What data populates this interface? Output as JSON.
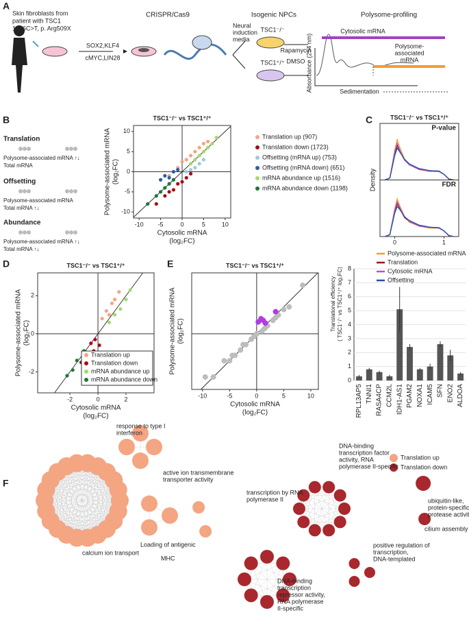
{
  "panel_labels": [
    "A",
    "B",
    "C",
    "D",
    "E",
    "F"
  ],
  "panel_a": {
    "patient": [
      "Skin fibroblasts from",
      "patient with TSC1",
      "1746C>T, p. Arg509X"
    ],
    "factors": [
      "SOX2,KLF4",
      "cMYC,LIN28"
    ],
    "crispr": "CRISPR/Cas9",
    "npcs": "Isogenic NPCs",
    "induction": [
      "Neural",
      "induction",
      "media"
    ],
    "ko": "TSC1⁻/⁻",
    "wt": "TSC1⁺/⁺",
    "treatment": [
      "Rapamycin",
      "DMSO"
    ],
    "profiling": "Polysome-profiling",
    "cytosolic": "Cytosolic mRNA",
    "polysome": [
      "Polysome-",
      "associated",
      "mRNA"
    ],
    "absorbance": "Absorbance (254 nm)",
    "sedimentation": "Sedimentation"
  },
  "panel_b_schema": [
    {
      "title": "Translation",
      "rows": [
        "Polysome-associated mRNA ↑↓",
        "Total mRNA"
      ]
    },
    {
      "title": "Offsetting",
      "rows": [
        "Polysome-associated mRNA",
        "Total mRNA ↑↓"
      ]
    },
    {
      "title": "Abundance",
      "rows": [
        "Polysome-associated mRNA ↑↓",
        "Total mRNA ↑↓"
      ]
    }
  ],
  "chart_data": [
    {
      "type": "scatter",
      "title": "TSC1⁻/⁻ vs TSC1⁺/⁺",
      "xlabel": [
        "Cytosolic mRNA",
        "(log₂FC)"
      ],
      "ylabel": [
        "Polysome-associated mRNA",
        "(log₂FC)"
      ],
      "xlim": [
        -11.3,
        11.3
      ],
      "ylim": [
        -11.5,
        11.5
      ],
      "xticks": [
        -10,
        -5,
        0,
        5,
        10
      ],
      "yticks": [
        -10,
        -5,
        0,
        5,
        10
      ],
      "series": [
        {
          "name": "Translation up (907)",
          "color": "#f4a582",
          "x": [
            -3,
            -1,
            0,
            1,
            2,
            3,
            4,
            5,
            6
          ],
          "y": [
            -1,
            1,
            2.5,
            3,
            4,
            5,
            6,
            7,
            7.5
          ]
        },
        {
          "name": "Translation down (1723)",
          "color": "#a50f15",
          "x": [
            -6,
            -4,
            -3,
            -2,
            -1,
            0,
            1,
            2
          ],
          "y": [
            -8,
            -6,
            -5,
            -4.5,
            -3,
            -2.5,
            -1.5,
            -0.5
          ]
        },
        {
          "name": "Offsetting (mRNA up) (753)",
          "color": "#9ecae1",
          "x": [
            1,
            2,
            3,
            4,
            5
          ],
          "y": [
            0,
            0.5,
            1,
            2,
            3
          ]
        },
        {
          "name": "Offsetting (mRNA down) (651)",
          "color": "#2c5ea8",
          "x": [
            -5,
            -4,
            -3,
            -2,
            -1
          ],
          "y": [
            -2,
            -1,
            -1.5,
            0,
            0.5
          ]
        },
        {
          "name": "mRNA abundance up (1516)",
          "color": "#a6d96a",
          "x": [
            2,
            3,
            4,
            5,
            6,
            7,
            8
          ],
          "y": [
            2,
            3,
            4,
            5,
            6,
            7,
            8.5
          ]
        },
        {
          "name": "mRNA abundance down (1198)",
          "color": "#1b7837",
          "x": [
            -8,
            -6,
            -5,
            -4,
            -3,
            -2
          ],
          "y": [
            -8,
            -6,
            -5,
            -4,
            -3,
            -2
          ]
        }
      ]
    },
    {
      "type": "density",
      "title": "TSC1⁻/⁻ vs TSC1⁺/⁺",
      "ylabel": "Density",
      "x": [
        -0.2,
        -0.1,
        0,
        0.05,
        0.1,
        0.2,
        0.3,
        0.5,
        0.7,
        0.9,
        1,
        1.1,
        1.2
      ],
      "xlim": [
        -0.3,
        1.3
      ],
      "xticks": [
        0,
        1
      ],
      "ylim": [
        0,
        5
      ],
      "legend": [
        {
          "name": "Polysome-associated mRNA",
          "color": "#f39c33"
        },
        {
          "name": "Translation",
          "color": "#8b1a1a"
        },
        {
          "name": "Cytosolic mRNA",
          "color": "#b455c8"
        },
        {
          "name": "Offsetting",
          "color": "#21509e"
        }
      ],
      "facets": [
        {
          "title": "P-value",
          "series": [
            [
              0,
              0.2,
              3.2,
              4.3,
              3.5,
              2.2,
              1.6,
              1.1,
              0.9,
              0.9,
              0.6,
              0.1,
              0
            ],
            [
              0,
              0.2,
              2.8,
              3.7,
              3.1,
              2.1,
              1.6,
              1.2,
              1,
              0.9,
              0.6,
              0.1,
              0
            ],
            [
              0,
              0.2,
              3,
              3.9,
              3.2,
              2.1,
              1.6,
              1.1,
              1,
              0.9,
              0.6,
              0.1,
              0
            ],
            [
              0,
              0.2,
              2.6,
              3.4,
              3,
              2.2,
              1.7,
              1.2,
              1,
              0.95,
              0.6,
              0.1,
              0
            ]
          ]
        },
        {
          "title": "FDR",
          "series": [
            [
              0,
              0.2,
              3,
              4,
              3.3,
              2.1,
              1.5,
              1.1,
              0.9,
              0.9,
              0.6,
              0.1,
              0
            ],
            [
              0,
              0.2,
              2.7,
              3.5,
              3,
              2,
              1.6,
              1.2,
              1,
              0.9,
              0.6,
              0.1,
              0
            ],
            [
              0,
              0.2,
              2.8,
              3.7,
              3.1,
              2.1,
              1.6,
              1.1,
              1,
              0.9,
              0.6,
              0.1,
              0
            ],
            [
              0,
              0.2,
              2.5,
              3.2,
              2.9,
              2.1,
              1.7,
              1.2,
              1,
              0.95,
              0.6,
              0.1,
              0
            ]
          ]
        }
      ]
    },
    {
      "type": "scatter",
      "title": "TSC1⁻/⁻ vs TSC1⁺/⁺",
      "xlabel": [
        "Cytosolic mRNA",
        "(log₂FC)"
      ],
      "ylabel": [
        "Polysome-associated mRNA",
        "(log₂FC)"
      ],
      "xlim": [
        -4.3,
        4
      ],
      "ylim": [
        -3.1,
        3.2
      ],
      "xticks": [
        -2,
        0,
        2
      ],
      "yticks": [
        -2,
        0,
        2
      ],
      "legend": "lower right",
      "series": [
        {
          "name": "Translation up",
          "color": "#f4a582",
          "x": [
            0.3,
            0.6,
            0.8,
            1,
            1.2,
            1.5
          ],
          "y": [
            0.8,
            1.2,
            1,
            1.6,
            1.8,
            2.2
          ]
        },
        {
          "name": "Translation down",
          "color": "#a50f15",
          "x": [
            -1.2,
            -0.8,
            -0.5,
            -0.3,
            -0.2,
            0.1
          ],
          "y": [
            -1.5,
            -1,
            -0.5,
            -0.9,
            -0.3,
            -0.6
          ]
        },
        {
          "name": "mRNA abundance up",
          "color": "#a6d96a",
          "x": [
            0.8,
            1.2,
            1.6,
            2,
            2.3
          ],
          "y": [
            0.6,
            1,
            1.3,
            1.8,
            2.3
          ]
        },
        {
          "name": "mRNA abundance down",
          "color": "#1b7837",
          "x": [
            -2.2,
            -1.8,
            -1.5,
            -1,
            -0.8
          ],
          "y": [
            -2.2,
            -1.9,
            -1.4,
            -0.9,
            -1
          ]
        }
      ]
    },
    {
      "type": "scatter",
      "title": "TSC1⁻/⁻ vs TSC1⁺/⁺",
      "xlabel": [
        "Cytosolic mRNA",
        "(log₂FC)"
      ],
      "ylabel": [
        "Polysome-associated mRNA",
        "(log₂FC)"
      ],
      "xlim": [
        -12,
        11.4
      ],
      "ylim": [
        -10.3,
        11.3
      ],
      "xticks": [
        -10,
        -5,
        0,
        5,
        10
      ],
      "series": [
        {
          "color": "#bdbdbd",
          "x": [
            -9.5,
            -8,
            -6,
            -5,
            -4.5,
            -4,
            -3,
            -2.5,
            -2,
            -1,
            -0.5,
            0,
            1,
            1.5,
            2,
            3,
            3.5,
            4,
            5,
            6,
            8.5
          ],
          "y": [
            -8,
            -8,
            -5,
            -5,
            -4,
            -4,
            -3,
            -2,
            -2,
            -1,
            -0.5,
            0,
            0.5,
            1,
            1.5,
            2.5,
            3,
            3.5,
            4.5,
            5,
            9
          ]
        },
        {
          "color": "#b23ce0",
          "x": [
            0.3,
            0.8,
            1.2,
            1.6,
            3.5
          ],
          "y": [
            2.2,
            2.8,
            2.5,
            2,
            4.1
          ]
        }
      ]
    },
    {
      "type": "bar",
      "ylabel": [
        "Translational efficiency",
        "( TSC1⁻/⁻ vs TSC1⁺/⁺ log₂FC)"
      ],
      "categories": [
        "RPL13AP5",
        "TNNI1",
        "RASA4CP",
        "CCM2L",
        "IDH1-AS1",
        "PGAM2",
        "NOXA1",
        "ICAM5",
        "SFN",
        "ENO2",
        "ALDOA"
      ],
      "values": [
        0.3,
        0.8,
        0.6,
        0.3,
        5.1,
        2.4,
        0.8,
        1,
        2.6,
        1.8,
        0.5
      ],
      "errors": [
        0.1,
        0.1,
        0.1,
        0.1,
        1.6,
        0.2,
        0.1,
        0.2,
        0.2,
        0.4,
        0.1
      ],
      "color": "#555555",
      "ylim": [
        0,
        8
      ],
      "yticks": [
        0,
        1,
        2,
        3,
        4,
        5,
        6,
        7,
        8
      ]
    }
  ],
  "network": {
    "legend": [
      "Translation up",
      "Translation down"
    ],
    "labels": [
      [
        "response to type I",
        "interferon"
      ],
      [
        "active ion transmembrane",
        "transporter activity"
      ],
      [
        "Loading of antigenic"
      ],
      [
        "MHC"
      ],
      [
        "calcium ion transport"
      ],
      [
        "transcription by RNA",
        "polymerase II"
      ],
      [
        "DNA-binding",
        "transcription factor",
        "activity, RNA",
        "polymerase II-specific"
      ],
      [
        "ubiquitin-like,",
        "protein-specific",
        "protease activity"
      ],
      [
        "cilium assembly"
      ],
      [
        "positive regulation of",
        "transcription,",
        "DNA-templated"
      ],
      [
        "DNA-binding",
        "transcription",
        "repressor activity,",
        "RNA polymerase",
        "II-specific"
      ]
    ]
  }
}
